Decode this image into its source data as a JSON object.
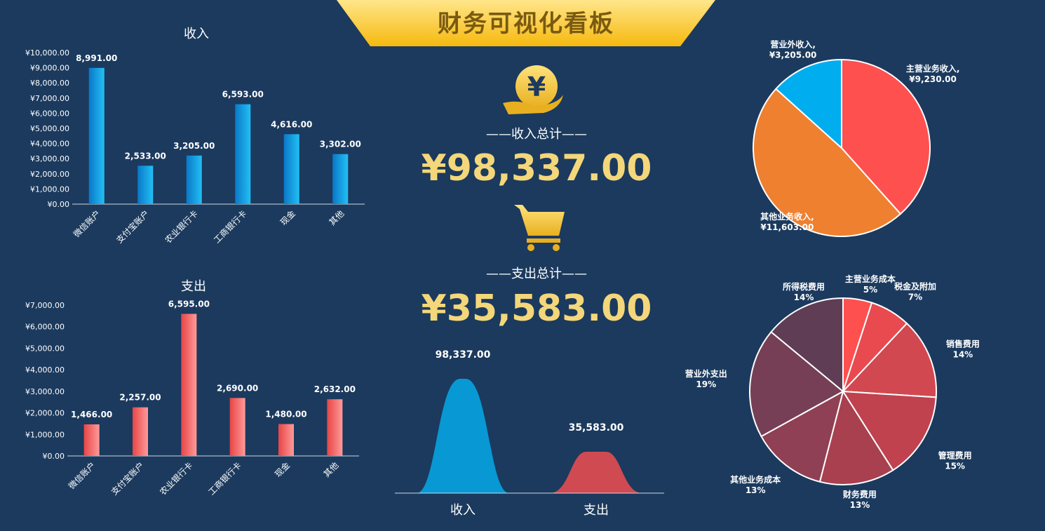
{
  "header": {
    "title": "财务可视化看板"
  },
  "summary": {
    "income_label": "——收入总计——",
    "income_value": "¥98,337.00",
    "expense_label": "——支出总计——",
    "expense_value": "¥35,583.00",
    "income_icon": "hand-yen-icon",
    "expense_icon": "cart-icon"
  },
  "chart_data": [
    {
      "id": "income-bar",
      "type": "bar",
      "title": "收入",
      "categories": [
        "微信账户",
        "支付宝账户",
        "农业银行卡",
        "工商银行卡",
        "现金",
        "其他"
      ],
      "values": [
        8991,
        2533,
        3205,
        6593,
        4616,
        3302
      ],
      "value_labels": [
        "8,991.00",
        "2,533.00",
        "3,205.00",
        "6,593.00",
        "4,616.00",
        "3,302.00"
      ],
      "yticks": [
        "¥0.00",
        "¥1,000.00",
        "¥2,000.00",
        "¥3,000.00",
        "¥4,000.00",
        "¥5,000.00",
        "¥6,000.00",
        "¥7,000.00",
        "¥8,000.00",
        "¥9,000.00",
        "¥10,000.00"
      ],
      "ylim": [
        0,
        10000
      ],
      "color": "#1aa0e0"
    },
    {
      "id": "expense-bar",
      "type": "bar",
      "title": "支出",
      "categories": [
        "微信账户",
        "支付宝账户",
        "农业银行卡",
        "工商银行卡",
        "现金",
        "其他"
      ],
      "values": [
        1466,
        2257,
        6595,
        2690,
        1480,
        2632
      ],
      "value_labels": [
        "1,466.00",
        "2,257.00",
        "6,595.00",
        "2,690.00",
        "1,480.00",
        "2,632.00"
      ],
      "yticks": [
        "¥0.00",
        "¥1,000.00",
        "¥2,000.00",
        "¥3,000.00",
        "¥4,000.00",
        "¥5,000.00",
        "¥6,000.00",
        "¥7,000.00"
      ],
      "ylim": [
        0,
        7000
      ],
      "color": "#ef5a5a"
    },
    {
      "id": "income-pie",
      "type": "pie",
      "slices": [
        {
          "name": "主营业务收入,",
          "label": "¥9,230.00",
          "value": 9230,
          "color": "#ff5050"
        },
        {
          "name": "其他业务收入,",
          "label": "¥11,603.00",
          "value": 11603,
          "color": "#ee8030"
        },
        {
          "name": "营业外收入,",
          "label": "¥3,205.00",
          "value": 3205,
          "color": "#00aeef"
        }
      ]
    },
    {
      "id": "expense-pie",
      "type": "pie",
      "slices": [
        {
          "name": "主营业务成本",
          "label": "5%",
          "value": 5,
          "color": "#ff5050"
        },
        {
          "name": "税金及附加",
          "label": "7%",
          "value": 7,
          "color": "#e84a50"
        },
        {
          "name": "销售费用",
          "label": "14%",
          "value": 14,
          "color": "#d24850"
        },
        {
          "name": "管理费用",
          "label": "15%",
          "value": 15,
          "color": "#c0424f"
        },
        {
          "name": "财务费用",
          "label": "13%",
          "value": 13,
          "color": "#a8404f"
        },
        {
          "name": "其他业务成本",
          "label": "13%",
          "value": 13,
          "color": "#8f4055"
        },
        {
          "name": "营业外支出",
          "label": "19%",
          "value": 19,
          "color": "#763f55"
        },
        {
          "name": "所得税费用",
          "label": "14%",
          "value": 14,
          "color": "#5f3d55"
        }
      ]
    },
    {
      "id": "compare-area",
      "type": "area",
      "categories": [
        "收入",
        "支出"
      ],
      "values": [
        98337,
        35583
      ],
      "value_labels": [
        "98,337.00",
        "35,583.00"
      ],
      "colors": [
        "#0898d4",
        "#d04a52"
      ]
    }
  ]
}
